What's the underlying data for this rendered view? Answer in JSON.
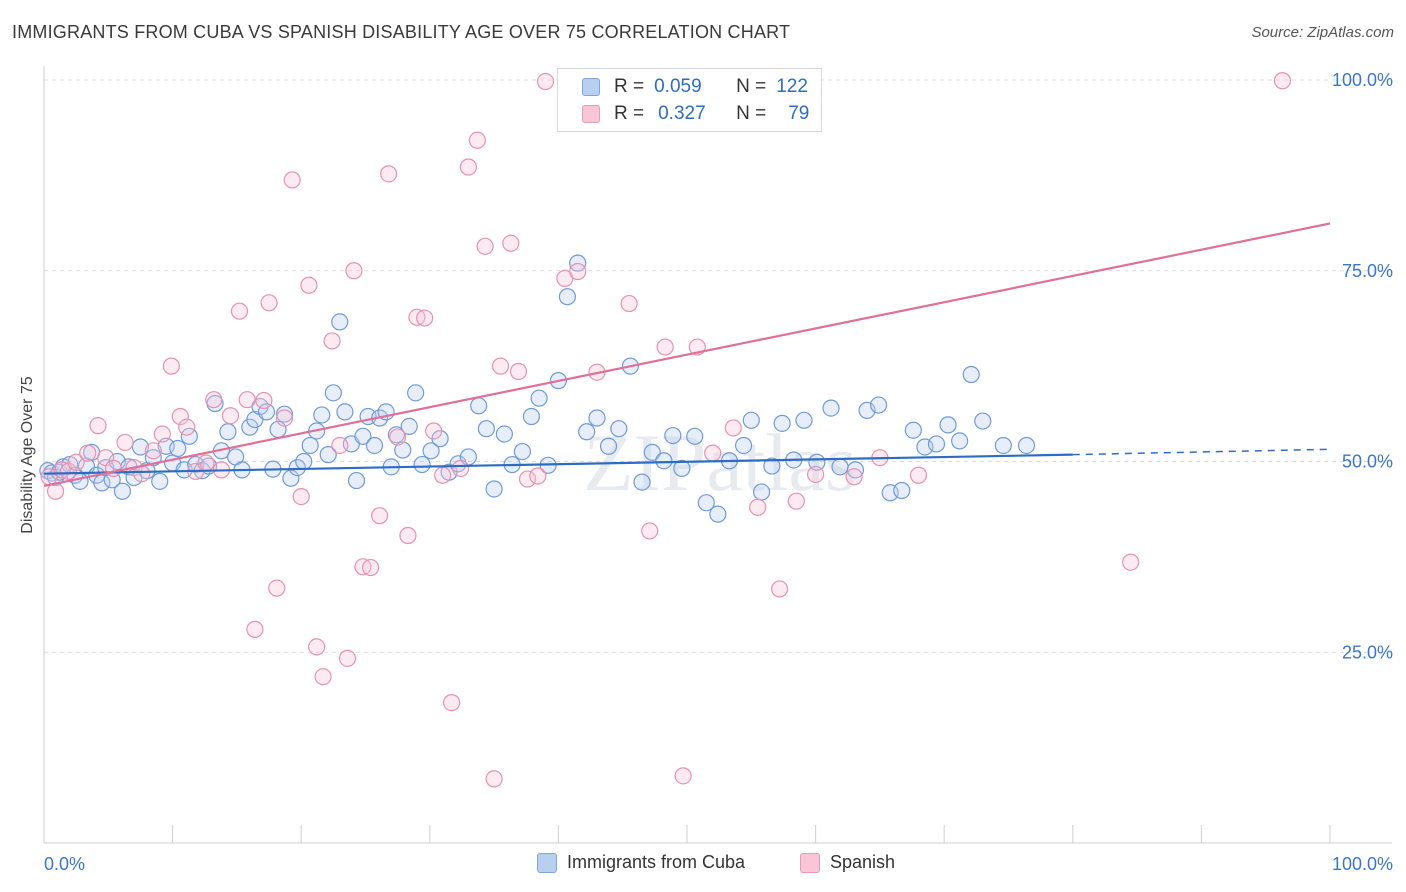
{
  "title": "IMMIGRANTS FROM CUBA VS SPANISH DISABILITY AGE OVER 75 CORRELATION CHART",
  "source": "Source: ZipAtlas.com",
  "watermark": "ZIPatlas",
  "colors": {
    "blue": "#2d6cc4",
    "pink": "#e07098",
    "blue_fill": "#b9cff0",
    "pink_fill": "#f8c6d6",
    "axis_text": "#3a76c9"
  },
  "legend": {
    "r_label": "R =",
    "n_label": "N =",
    "blue": {
      "r": "0.059",
      "n": "122"
    },
    "pink": {
      "r": "0.327",
      "n": "79"
    }
  },
  "bottom_legend": {
    "blue": "Immigrants from Cuba",
    "pink": "Spanish"
  },
  "chart_data": {
    "type": "scatter",
    "ylabel": "Disability Age Over 75",
    "x_tick_labels": [
      "0.0%",
      "100.0%"
    ],
    "y_tick_labels": [
      "100.0%",
      "75.0%",
      "50.0%",
      "25.0%"
    ],
    "xlim": [
      0,
      100
    ],
    "ylim": [
      0,
      100
    ],
    "grid": "horizontal dashed",
    "series": [
      {
        "name": "Immigrants from Cuba",
        "color": "blue",
        "trend": {
          "x": [
            0,
            80
          ],
          "y": [
            48.4,
            50.9
          ],
          "dashed_extension_to": [
            100,
            51.6
          ]
        },
        "points": [
          [
            0.3,
            48.8
          ],
          [
            0.6,
            48.5
          ],
          [
            0.9,
            47.9
          ],
          [
            1.2,
            48.6
          ],
          [
            1.5,
            49.3
          ],
          [
            2.0,
            49.6
          ],
          [
            2.4,
            48.2
          ],
          [
            2.8,
            47.4
          ],
          [
            3.3,
            49.4
          ],
          [
            3.7,
            51.2
          ],
          [
            4.1,
            48.2
          ],
          [
            4.5,
            47.2
          ],
          [
            4.8,
            49.2
          ],
          [
            5.3,
            47.6
          ],
          [
            5.7,
            50.0
          ],
          [
            6.1,
            46.1
          ],
          [
            6.6,
            49.3
          ],
          [
            7.0,
            47.9
          ],
          [
            7.5,
            51.9
          ],
          [
            8.0,
            48.8
          ],
          [
            8.5,
            50.5
          ],
          [
            9.0,
            47.4
          ],
          [
            9.5,
            52.0
          ],
          [
            10.0,
            49.8
          ],
          [
            10.4,
            51.7
          ],
          [
            10.9,
            48.9
          ],
          [
            11.3,
            53.3
          ],
          [
            11.8,
            49.6
          ],
          [
            12.3,
            48.8
          ],
          [
            12.8,
            49.4
          ],
          [
            13.3,
            57.6
          ],
          [
            13.8,
            51.4
          ],
          [
            14.3,
            53.9
          ],
          [
            14.9,
            50.6
          ],
          [
            15.4,
            48.9
          ],
          [
            16.0,
            54.5
          ],
          [
            16.4,
            55.5
          ],
          [
            16.8,
            57.2
          ],
          [
            17.3,
            56.5
          ],
          [
            17.8,
            49.0
          ],
          [
            18.2,
            54.2
          ],
          [
            18.7,
            56.2
          ],
          [
            19.2,
            47.8
          ],
          [
            19.7,
            49.2
          ],
          [
            20.2,
            50.0
          ],
          [
            20.7,
            52.1
          ],
          [
            21.2,
            54.0
          ],
          [
            21.6,
            56.1
          ],
          [
            22.1,
            50.9
          ],
          [
            22.5,
            59.0
          ],
          [
            23.0,
            68.3
          ],
          [
            23.4,
            56.5
          ],
          [
            23.9,
            52.3
          ],
          [
            24.3,
            47.5
          ],
          [
            24.8,
            53.3
          ],
          [
            25.2,
            55.9
          ],
          [
            25.7,
            52.1
          ],
          [
            26.1,
            55.7
          ],
          [
            26.6,
            56.5
          ],
          [
            27.0,
            49.3
          ],
          [
            27.4,
            53.5
          ],
          [
            27.9,
            51.5
          ],
          [
            28.4,
            54.6
          ],
          [
            28.9,
            59.0
          ],
          [
            29.4,
            49.6
          ],
          [
            30.1,
            51.4
          ],
          [
            30.8,
            53.0
          ],
          [
            31.5,
            48.6
          ],
          [
            32.2,
            49.7
          ],
          [
            33.0,
            50.6
          ],
          [
            33.8,
            57.3
          ],
          [
            34.4,
            54.3
          ],
          [
            35.0,
            46.4
          ],
          [
            35.8,
            53.6
          ],
          [
            36.4,
            49.6
          ],
          [
            37.2,
            51.3
          ],
          [
            37.9,
            55.9
          ],
          [
            38.5,
            58.3
          ],
          [
            39.2,
            49.5
          ],
          [
            40.0,
            60.6
          ],
          [
            40.7,
            71.6
          ],
          [
            41.5,
            76.0
          ],
          [
            42.2,
            53.9
          ],
          [
            43.0,
            55.7
          ],
          [
            43.9,
            52.0
          ],
          [
            44.7,
            54.3
          ],
          [
            45.6,
            62.5
          ],
          [
            46.5,
            47.3
          ],
          [
            47.3,
            51.2
          ],
          [
            48.2,
            50.1
          ],
          [
            48.9,
            53.4
          ],
          [
            49.6,
            49.1
          ],
          [
            50.6,
            53.3
          ],
          [
            51.5,
            44.6
          ],
          [
            52.4,
            43.1
          ],
          [
            53.3,
            50.1
          ],
          [
            54.4,
            52.1
          ],
          [
            55.0,
            55.4
          ],
          [
            55.8,
            46.0
          ],
          [
            56.6,
            49.4
          ],
          [
            57.4,
            55.0
          ],
          [
            58.3,
            50.2
          ],
          [
            59.1,
            55.4
          ],
          [
            60.1,
            49.9
          ],
          [
            61.2,
            57.0
          ],
          [
            61.9,
            49.3
          ],
          [
            63.1,
            48.9
          ],
          [
            64.0,
            56.7
          ],
          [
            64.9,
            57.4
          ],
          [
            65.8,
            45.9
          ],
          [
            66.7,
            46.2
          ],
          [
            67.6,
            54.1
          ],
          [
            68.5,
            51.9
          ],
          [
            69.4,
            52.3
          ],
          [
            70.3,
            54.8
          ],
          [
            71.2,
            52.7
          ],
          [
            72.1,
            61.4
          ],
          [
            73.0,
            55.3
          ],
          [
            74.6,
            52.1
          ],
          [
            76.4,
            52.1
          ]
        ]
      },
      {
        "name": "Spanish",
        "color": "pink",
        "trend": {
          "x": [
            0,
            100
          ],
          "y": [
            46.8,
            81.2
          ]
        },
        "points": [
          [
            0.4,
            48.0
          ],
          [
            0.9,
            46.1
          ],
          [
            1.4,
            48.9
          ],
          [
            1.9,
            48.7
          ],
          [
            2.5,
            49.9
          ],
          [
            3.4,
            51.1
          ],
          [
            4.2,
            54.7
          ],
          [
            4.8,
            50.5
          ],
          [
            5.4,
            49.1
          ],
          [
            6.3,
            52.5
          ],
          [
            7.0,
            49.2
          ],
          [
            7.6,
            48.4
          ],
          [
            8.5,
            51.4
          ],
          [
            9.2,
            53.6
          ],
          [
            9.9,
            62.5
          ],
          [
            10.6,
            55.9
          ],
          [
            11.1,
            54.5
          ],
          [
            11.8,
            48.7
          ],
          [
            12.6,
            49.8
          ],
          [
            13.2,
            58.1
          ],
          [
            13.8,
            48.9
          ],
          [
            14.5,
            56.0
          ],
          [
            15.2,
            69.7
          ],
          [
            15.8,
            58.1
          ],
          [
            16.4,
            28.0
          ],
          [
            17.1,
            58.0
          ],
          [
            17.5,
            70.8
          ],
          [
            18.1,
            33.4
          ],
          [
            18.7,
            55.7
          ],
          [
            19.3,
            86.9
          ],
          [
            20.0,
            45.4
          ],
          [
            20.6,
            73.1
          ],
          [
            21.2,
            25.7
          ],
          [
            21.7,
            21.8
          ],
          [
            22.4,
            65.8
          ],
          [
            23.0,
            52.1
          ],
          [
            23.6,
            24.2
          ],
          [
            24.1,
            75.0
          ],
          [
            24.8,
            36.2
          ],
          [
            25.4,
            36.1
          ],
          [
            26.1,
            42.9
          ],
          [
            26.8,
            87.7
          ],
          [
            27.5,
            53.2
          ],
          [
            28.3,
            40.3
          ],
          [
            29.0,
            68.9
          ],
          [
            29.6,
            68.8
          ],
          [
            30.3,
            54.0
          ],
          [
            31.0,
            48.2
          ],
          [
            31.7,
            18.4
          ],
          [
            32.4,
            49.1
          ],
          [
            33.0,
            88.6
          ],
          [
            33.7,
            92.1
          ],
          [
            34.3,
            78.2
          ],
          [
            35.0,
            8.4
          ],
          [
            35.5,
            62.5
          ],
          [
            36.3,
            78.6
          ],
          [
            36.9,
            61.8
          ],
          [
            37.6,
            47.7
          ],
          [
            38.4,
            48.1
          ],
          [
            39.0,
            99.8
          ],
          [
            40.5,
            74.0
          ],
          [
            41.5,
            74.9
          ],
          [
            43.0,
            61.7
          ],
          [
            45.5,
            70.7
          ],
          [
            47.1,
            40.9
          ],
          [
            48.3,
            65.0
          ],
          [
            49.7,
            8.8
          ],
          [
            50.8,
            65.0
          ],
          [
            52.0,
            51.1
          ],
          [
            53.6,
            54.4
          ],
          [
            55.5,
            44.0
          ],
          [
            57.2,
            33.3
          ],
          [
            58.5,
            44.8
          ],
          [
            60.0,
            48.3
          ],
          [
            63.0,
            48.0
          ],
          [
            65.0,
            50.5
          ],
          [
            68.0,
            48.2
          ],
          [
            84.5,
            36.8
          ],
          [
            96.3,
            99.9
          ]
        ]
      }
    ]
  }
}
